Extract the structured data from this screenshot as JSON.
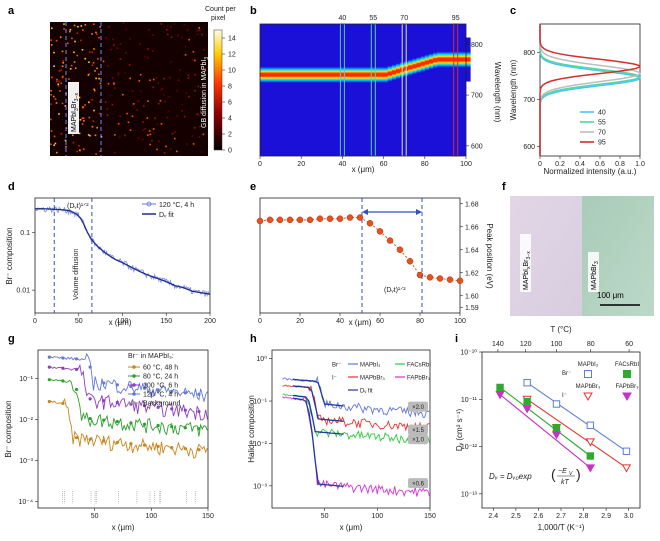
{
  "panel_letters": [
    "a",
    "b",
    "c",
    "d",
    "e",
    "f",
    "g",
    "h",
    "i"
  ],
  "chart_data": [
    {
      "panel": "a",
      "type": "heatmap",
      "colorbar_title": [
        "Count per",
        "pixel"
      ],
      "colorbar_ticks": [
        "14",
        "12",
        "10",
        "8",
        "6",
        "4",
        "2",
        "0"
      ],
      "colorbar_range": [
        0,
        15
      ],
      "left_label": "MAPbI",
      "left_label_sub": "3",
      "left_label_sub2": "Br",
      "left_label_sub3": "3−x",
      "right_label": "GB diffusion in MAPbI",
      "right_label_sub": "3"
    },
    {
      "panel": "b",
      "type": "heatmap",
      "xlabel": "x (μm)",
      "ylabel": "Wavelength (nm)",
      "xticks": [
        "0",
        "20",
        "40",
        "60",
        "80",
        "100"
      ],
      "yticks": [
        "800",
        "700",
        "600"
      ],
      "xlim": [
        0,
        100
      ],
      "ylim": [
        580,
        840
      ],
      "markers": [
        {
          "label": "40",
          "x": 40,
          "color": "#4fc3f7"
        },
        {
          "label": "55",
          "x": 55,
          "color": "#4dd9a0"
        },
        {
          "label": "70",
          "x": 70,
          "color": "#e0e0e0"
        },
        {
          "label": "95",
          "x": 95,
          "color": "#d32f2f"
        }
      ]
    },
    {
      "panel": "c",
      "type": "line",
      "xlabel": "Normalized intensity (a.u.)",
      "ylabel": "Wavelength (nm)",
      "xticks": [
        "0",
        "0.2",
        "0.4",
        "0.6",
        "0.8",
        "1.0"
      ],
      "yticks": [
        "800",
        "700",
        "600"
      ],
      "xlim": [
        0,
        1
      ],
      "ylim": [
        580,
        860
      ],
      "series": [
        {
          "name": "40",
          "color": "#4fc3f7",
          "peak": 745,
          "width": 22
        },
        {
          "name": "55",
          "color": "#4dd9a0",
          "peak": 748,
          "width": 22
        },
        {
          "name": "70",
          "color": "#bdbdbd",
          "peak": 755,
          "width": 24
        },
        {
          "name": "95",
          "color": "#d32f2f",
          "peak": 770,
          "width": 21
        }
      ]
    },
    {
      "panel": "d",
      "type": "line",
      "xlabel": "x (μm)",
      "ylabel": "Br⁻ composition",
      "xticks": [
        "0",
        "50",
        "100",
        "150",
        "200"
      ],
      "yticks": [
        "0.1",
        "0.01"
      ],
      "xlim": [
        0,
        200
      ],
      "ylim": [
        0.004,
        0.4
      ],
      "yscale": "log",
      "legend": [
        "120 °C, 4 h",
        "Dᵥ fit"
      ],
      "annotations": [
        "(Dᵥt)¹ᐟ²",
        "Volume diffusion"
      ],
      "dashed_x": [
        22,
        65
      ],
      "data_x": [
        0,
        10,
        20,
        30,
        40,
        50,
        55,
        60,
        65,
        70,
        80,
        90,
        100,
        110,
        120,
        130,
        140,
        150,
        160,
        170,
        180,
        190,
        200
      ],
      "data_y": [
        0.26,
        0.26,
        0.255,
        0.25,
        0.24,
        0.2,
        0.15,
        0.1,
        0.075,
        0.06,
        0.045,
        0.035,
        0.03,
        0.025,
        0.021,
        0.018,
        0.016,
        0.014,
        0.012,
        0.011,
        0.0095,
        0.009,
        0.0085
      ]
    },
    {
      "panel": "e",
      "type": "scatter",
      "xlabel": "x (μm)",
      "ylabel": "Peak position (eV)",
      "xticks": [
        "0",
        "20",
        "40",
        "60",
        "80",
        "100"
      ],
      "yticks": [
        "1.68",
        "1.66",
        "1.64",
        "1.62",
        "1.60",
        "1.59"
      ],
      "xlim": [
        0,
        100
      ],
      "ylim": [
        1.585,
        1.685
      ],
      "annotation": "(Dᵥt)¹ᐟ²",
      "dashed_x": [
        51,
        81
      ],
      "points_x": [
        0,
        5,
        10,
        15,
        20,
        25,
        30,
        35,
        40,
        45,
        50,
        55,
        60,
        65,
        70,
        75,
        80,
        85,
        90,
        95,
        100
      ],
      "points_y": [
        1.665,
        1.666,
        1.666,
        1.666,
        1.666,
        1.666,
        1.667,
        1.667,
        1.667,
        1.668,
        1.668,
        1.663,
        1.656,
        1.648,
        1.64,
        1.63,
        1.618,
        1.616,
        1.615,
        1.614,
        1.613
      ]
    },
    {
      "panel": "f",
      "type": "table",
      "left_label": "MAPbI",
      "left_label_sub": "x",
      "left_label_mid": "Br",
      "left_label_sub2": "3−x",
      "right_label": "MAPbBr",
      "right_label_sub": "3",
      "scalebar": "100 μm"
    },
    {
      "panel": "g",
      "type": "line",
      "xlabel": "x (μm)",
      "ylabel": "Br⁻ composition",
      "xticks": [
        "50",
        "100",
        "150"
      ],
      "yticks": [
        "10⁻¹",
        "10⁻²",
        "10⁻³",
        "10⁻⁴"
      ],
      "xlim": [
        0,
        150
      ],
      "ylim": [
        7e-05,
        0.5
      ],
      "yscale": "log",
      "legend_title": "Br⁻ in MAPbI₃:",
      "series": [
        {
          "name": "60 °C, 48 h",
          "color": "#c8861e",
          "plateau": 0.03,
          "edge": 22,
          "tail": 0.004,
          "end": 0.0018
        },
        {
          "name": "80 °C, 24 h",
          "color": "#2e9e2e",
          "plateau": 0.1,
          "edge": 30,
          "tail": 0.012,
          "end": 0.006
        },
        {
          "name": "100 °C, 6 h",
          "color": "#8e3fbf",
          "plateau": 0.2,
          "edge": 36,
          "tail": 0.035,
          "end": 0.012
        },
        {
          "name": "120 °C, 4 h",
          "color": "#6478d8",
          "plateau": 0.35,
          "edge": 42,
          "tail": 0.09,
          "end": 0.03
        },
        {
          "name": "Background",
          "color": "#9e9e9e",
          "plateau": 0.0002,
          "edge": 0,
          "tail": 0.0002,
          "end": 0.0002
        }
      ]
    },
    {
      "panel": "h",
      "type": "line",
      "xlabel": "x (μm)",
      "ylabel": "Halide composition",
      "xticks": [
        "50",
        "100",
        "150"
      ],
      "yticks": [
        "10⁰",
        "10⁻¹",
        "10⁻²",
        "10⁻³"
      ],
      "xlim": [
        0,
        150
      ],
      "ylim": [
        0.0003,
        1.6
      ],
      "yscale": "log",
      "legend": [
        {
          "prefix": "Br⁻",
          "name": "MAPbI₃",
          "color": "#6478d8"
        },
        {
          "prefix": "",
          "name": "FACsRbI",
          "color": "#2ecc40"
        },
        {
          "prefix": "I⁻",
          "name": "MAPbBr₃",
          "color": "#e8332e"
        },
        {
          "prefix": "",
          "name": "FAPbBr₃",
          "color": "#d633d6"
        },
        {
          "prefix": "",
          "name": "Dᵥ fit",
          "color": "#1f3a9a"
        }
      ],
      "badges": [
        "×2.0",
        "×1.5",
        "×1.0",
        "×0.6"
      ],
      "series": [
        {
          "color": "#6478d8",
          "plateau": 0.35,
          "edge": 42,
          "tail": 0.09,
          "end": 0.06
        },
        {
          "color": "#e8332e",
          "plateau": 0.25,
          "edge": 35,
          "tail": 0.04,
          "end": 0.03
        },
        {
          "color": "#2ecc40",
          "plateau": 0.15,
          "edge": 32,
          "tail": 0.02,
          "end": 0.016
        },
        {
          "color": "#d633d6",
          "plateau": 0.13,
          "edge": 30,
          "tail": 0.0012,
          "end": 0.0009
        }
      ]
    },
    {
      "panel": "i",
      "type": "scatter",
      "xlabel": "1,000/T (K⁻¹)",
      "ylabel": "Dᵥ (cm² s⁻¹)",
      "top_label": "T (°C)",
      "xticks": [
        "2.4",
        "2.5",
        "2.6",
        "2.7",
        "2.8",
        "2.9",
        "3.0"
      ],
      "top_ticks": [
        "140",
        "120",
        "100",
        "80",
        "60"
      ],
      "yticks": [
        "10⁻¹⁰",
        "10⁻¹¹",
        "10⁻¹²",
        "10⁻¹³"
      ],
      "xlim": [
        2.35,
        3.05
      ],
      "ylim": [
        -13.3,
        -10
      ],
      "equation": "Dᵥ = Dᵥ₀exp",
      "legend": [
        {
          "prefix": "Br⁻",
          "name": "MAPbI₃",
          "color": "#5c7fd6",
          "marker": "square-open"
        },
        {
          "prefix": "",
          "name": "FACsRbI",
          "color": "#2eaa2e",
          "marker": "square-filled"
        },
        {
          "prefix": "I⁻",
          "name": "MAPbBr₃",
          "color": "#e8332e",
          "marker": "triangle-open"
        },
        {
          "prefix": "",
          "name": "FAPbBr₃",
          "color": "#c433c4",
          "marker": "triangle-filled"
        }
      ],
      "series": [
        {
          "name": "MAPbI₃",
          "x": [
            2.55,
            2.68,
            2.83,
            2.99
          ],
          "y": [
            -10.65,
            -11.1,
            -11.55,
            -12.1
          ]
        },
        {
          "name": "MAPbBr₃",
          "x": [
            2.55,
            2.68,
            2.83,
            2.99
          ],
          "y": [
            -11.0,
            -11.6,
            -11.9,
            -12.45
          ]
        },
        {
          "name": "FACsRbI",
          "x": [
            2.43,
            2.55,
            2.68,
            2.83
          ],
          "y": [
            -10.75,
            -11.05,
            -11.6,
            -12.2
          ]
        },
        {
          "name": "FAPbBr₃",
          "x": [
            2.43,
            2.55,
            2.68,
            2.83
          ],
          "y": [
            -10.9,
            -11.2,
            -11.75,
            -12.45
          ]
        }
      ]
    }
  ]
}
